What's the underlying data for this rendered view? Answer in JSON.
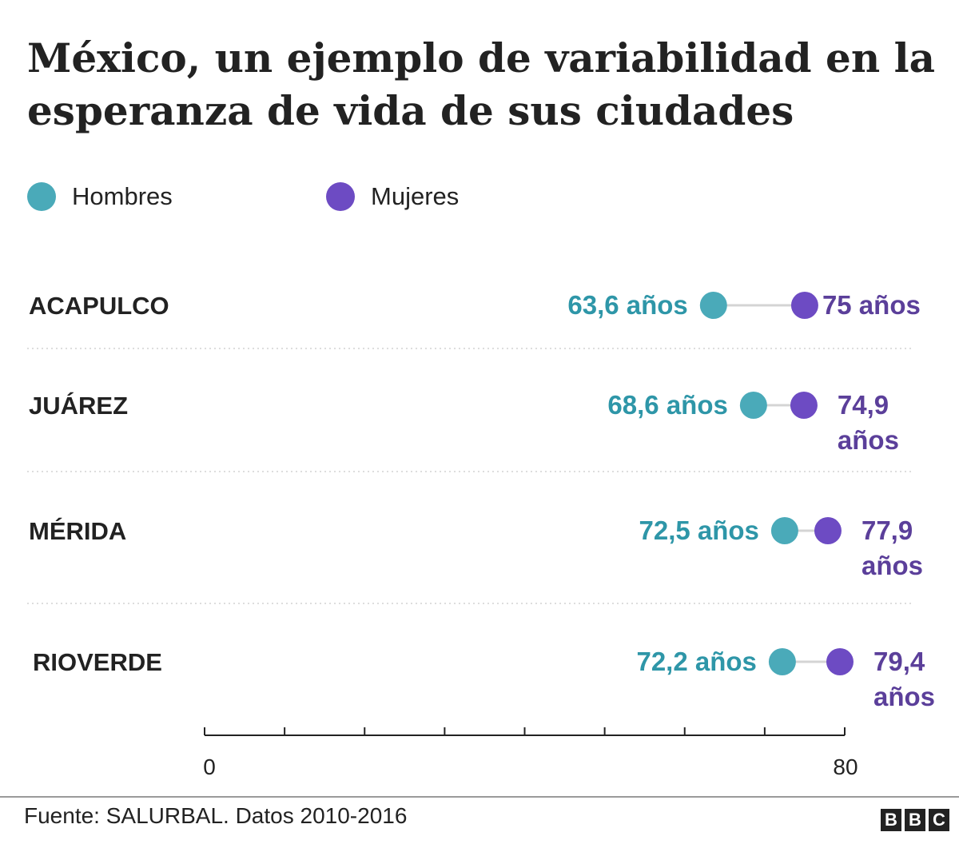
{
  "title": "México, un ejemplo de variabilidad en la esperanza de vida de sus ciudades",
  "legend": [
    {
      "label": "Hombres",
      "color": "#4AAAB9"
    },
    {
      "label": "Mujeres",
      "color": "#6D4BC3"
    }
  ],
  "chart_data": {
    "type": "dot-plot",
    "categories": [
      "ACAPULCO",
      "JUÁREZ",
      "MÉRIDA",
      "RIOVERDE"
    ],
    "series": [
      {
        "name": "Hombres",
        "color": "#4AAAB9",
        "text_color": "#2E96A8",
        "values": [
          63.6,
          68.6,
          72.5,
          72.2
        ],
        "labels": [
          "63,6 años",
          "68,6 años",
          "72,5 años",
          "72,2 años"
        ]
      },
      {
        "name": "Mujeres",
        "color": "#6D4BC3",
        "text_color": "#5B3F9A",
        "values": [
          75,
          74.9,
          77.9,
          79.4
        ],
        "labels": [
          "75 años",
          "74,9 años",
          "77,9 años",
          "79,4 años"
        ]
      }
    ],
    "xlim": [
      0,
      80
    ],
    "x_tick_labels": [
      "0",
      "80"
    ],
    "grid": false,
    "legend_position": "top-left"
  },
  "source": "Fuente: SALURBAL. Datos 2010-2016",
  "logo": "BBC"
}
